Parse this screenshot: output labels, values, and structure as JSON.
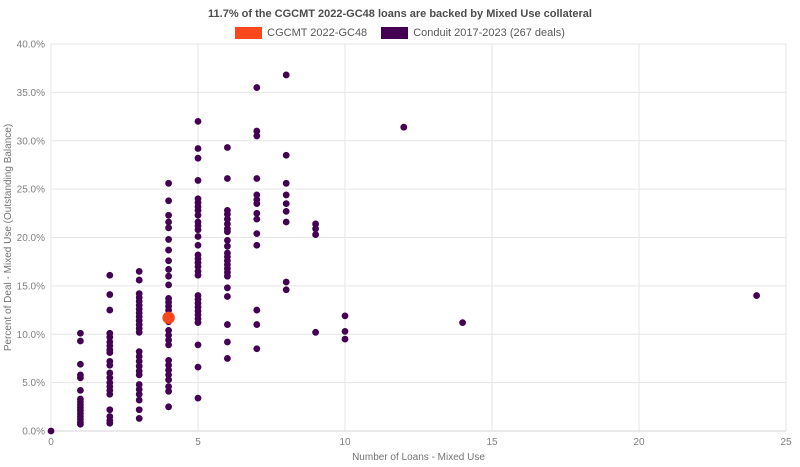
{
  "chart": {
    "title": "11.7% of the CGCMT 2022-GC48 loans are backed by Mixed Use collateral"
  },
  "chart_data": {
    "type": "scatter",
    "title": "11.7% of the CGCMT 2022-GC48 loans are backed by Mixed Use collateral",
    "xlabel": "Number of Loans - Mixed Use",
    "ylabel": "Percent of Deal - Mixed Use (Outstanding Balance)",
    "xlim": [
      0,
      25
    ],
    "ylim": [
      0,
      40
    ],
    "x_ticks": [
      0,
      5,
      10,
      15,
      20,
      25
    ],
    "y_ticks": [
      0,
      5,
      10,
      15,
      20,
      25,
      30,
      35,
      40
    ],
    "y_tick_suffix": "%",
    "grid": true,
    "legend_position": "top",
    "colors": {
      "grid": "#e6e6e6",
      "axis_line": "#d4d4d4",
      "tick_text": "#808080",
      "title_text": "#4d4d4d"
    },
    "series": [
      {
        "name": "CGCMT 2022-GC48",
        "color": "#fa471d",
        "marker_radius": 6.2,
        "points": [
          [
            4,
            11.7
          ]
        ]
      },
      {
        "name": "Conduit 2017-2023 (267 deals)",
        "color": "#440154",
        "marker_radius": 3.4,
        "points": [
          [
            0,
            0.0
          ],
          [
            1,
            10.1
          ],
          [
            1,
            9.3
          ],
          [
            1,
            6.9
          ],
          [
            1,
            5.8
          ],
          [
            1,
            5.5
          ],
          [
            1,
            4.2
          ],
          [
            1,
            3.3
          ],
          [
            1,
            3.0
          ],
          [
            1,
            2.7
          ],
          [
            1,
            2.4
          ],
          [
            1,
            2.1
          ],
          [
            1,
            1.8
          ],
          [
            1,
            1.5
          ],
          [
            1,
            1.2
          ],
          [
            1,
            0.9
          ],
          [
            1,
            0.7
          ],
          [
            2,
            16.1
          ],
          [
            2,
            14.1
          ],
          [
            2,
            12.5
          ],
          [
            2,
            10.1
          ],
          [
            2,
            9.7
          ],
          [
            2,
            9.2
          ],
          [
            2,
            8.8
          ],
          [
            2,
            8.4
          ],
          [
            2,
            8.1
          ],
          [
            2,
            7.2
          ],
          [
            2,
            6.8
          ],
          [
            2,
            6.0
          ],
          [
            2,
            5.5
          ],
          [
            2,
            5.0
          ],
          [
            2,
            4.6
          ],
          [
            2,
            4.2
          ],
          [
            2,
            3.8
          ],
          [
            2,
            2.2
          ],
          [
            2,
            1.5
          ],
          [
            2,
            1.1
          ],
          [
            2,
            0.8
          ],
          [
            3,
            16.5
          ],
          [
            3,
            15.6
          ],
          [
            3,
            14.2
          ],
          [
            3,
            13.8
          ],
          [
            3,
            13.4
          ],
          [
            3,
            13.0
          ],
          [
            3,
            12.6
          ],
          [
            3,
            12.2
          ],
          [
            3,
            11.8
          ],
          [
            3,
            11.4
          ],
          [
            3,
            11.0
          ],
          [
            3,
            10.6
          ],
          [
            3,
            10.2
          ],
          [
            3,
            8.2
          ],
          [
            3,
            7.7
          ],
          [
            3,
            7.2
          ],
          [
            3,
            6.7
          ],
          [
            3,
            6.2
          ],
          [
            3,
            5.8
          ],
          [
            3,
            4.8
          ],
          [
            3,
            4.3
          ],
          [
            3,
            3.8
          ],
          [
            3,
            3.2
          ],
          [
            3,
            2.2
          ],
          [
            3,
            1.3
          ],
          [
            4,
            25.6
          ],
          [
            4,
            23.8
          ],
          [
            4,
            22.3
          ],
          [
            4,
            21.6
          ],
          [
            4,
            21.0
          ],
          [
            4,
            19.8
          ],
          [
            4,
            18.7
          ],
          [
            4,
            17.6
          ],
          [
            4,
            16.7
          ],
          [
            4,
            16.0
          ],
          [
            4,
            15.1
          ],
          [
            4,
            13.7
          ],
          [
            4,
            13.3
          ],
          [
            4,
            12.9
          ],
          [
            4,
            12.5
          ],
          [
            4,
            11.3
          ],
          [
            4,
            10.4
          ],
          [
            4,
            9.9
          ],
          [
            4,
            9.4
          ],
          [
            4,
            8.9
          ],
          [
            4,
            7.3
          ],
          [
            4,
            6.8
          ],
          [
            4,
            6.3
          ],
          [
            4,
            5.8
          ],
          [
            4,
            5.3
          ],
          [
            4,
            4.6
          ],
          [
            4,
            4.1
          ],
          [
            4,
            2.5
          ],
          [
            5,
            32.0
          ],
          [
            5,
            29.2
          ],
          [
            5,
            28.2
          ],
          [
            5,
            25.9
          ],
          [
            5,
            24.0
          ],
          [
            5,
            23.6
          ],
          [
            5,
            23.2
          ],
          [
            5,
            22.8
          ],
          [
            5,
            22.3
          ],
          [
            5,
            21.6
          ],
          [
            5,
            21.2
          ],
          [
            5,
            20.8
          ],
          [
            5,
            20.1
          ],
          [
            5,
            19.2
          ],
          [
            5,
            18.2
          ],
          [
            5,
            17.8
          ],
          [
            5,
            17.4
          ],
          [
            5,
            17.0
          ],
          [
            5,
            16.5
          ],
          [
            5,
            16.1
          ],
          [
            5,
            14.0
          ],
          [
            5,
            13.6
          ],
          [
            5,
            13.2
          ],
          [
            5,
            12.8
          ],
          [
            5,
            12.4
          ],
          [
            5,
            12.0
          ],
          [
            5,
            11.6
          ],
          [
            5,
            11.2
          ],
          [
            5,
            8.9
          ],
          [
            5,
            6.6
          ],
          [
            5,
            3.4
          ],
          [
            6,
            29.3
          ],
          [
            6,
            26.1
          ],
          [
            6,
            22.8
          ],
          [
            6,
            22.4
          ],
          [
            6,
            21.9
          ],
          [
            6,
            21.4
          ],
          [
            6,
            20.9
          ],
          [
            6,
            20.6
          ],
          [
            6,
            19.7
          ],
          [
            6,
            19.1
          ],
          [
            6,
            18.4
          ],
          [
            6,
            18.0
          ],
          [
            6,
            17.6
          ],
          [
            6,
            17.2
          ],
          [
            6,
            16.8
          ],
          [
            6,
            16.4
          ],
          [
            6,
            16.0
          ],
          [
            6,
            14.8
          ],
          [
            6,
            13.9
          ],
          [
            6,
            11.0
          ],
          [
            6,
            9.2
          ],
          [
            6,
            7.5
          ],
          [
            7,
            35.5
          ],
          [
            7,
            31.0
          ],
          [
            7,
            30.5
          ],
          [
            7,
            26.1
          ],
          [
            7,
            24.4
          ],
          [
            7,
            23.9
          ],
          [
            7,
            23.5
          ],
          [
            7,
            22.5
          ],
          [
            7,
            21.9
          ],
          [
            7,
            20.4
          ],
          [
            7,
            19.2
          ],
          [
            7,
            12.5
          ],
          [
            7,
            11.0
          ],
          [
            7,
            8.5
          ],
          [
            8,
            36.8
          ],
          [
            8,
            28.5
          ],
          [
            8,
            25.6
          ],
          [
            8,
            24.4
          ],
          [
            8,
            23.5
          ],
          [
            8,
            22.7
          ],
          [
            8,
            21.6
          ],
          [
            8,
            15.4
          ],
          [
            8,
            14.6
          ],
          [
            9,
            21.4
          ],
          [
            9,
            20.9
          ],
          [
            9,
            20.3
          ],
          [
            9,
            10.2
          ],
          [
            10,
            11.9
          ],
          [
            10,
            10.3
          ],
          [
            10,
            9.5
          ],
          [
            12,
            31.4
          ],
          [
            14,
            11.2
          ],
          [
            24,
            14.0
          ]
        ]
      }
    ]
  }
}
